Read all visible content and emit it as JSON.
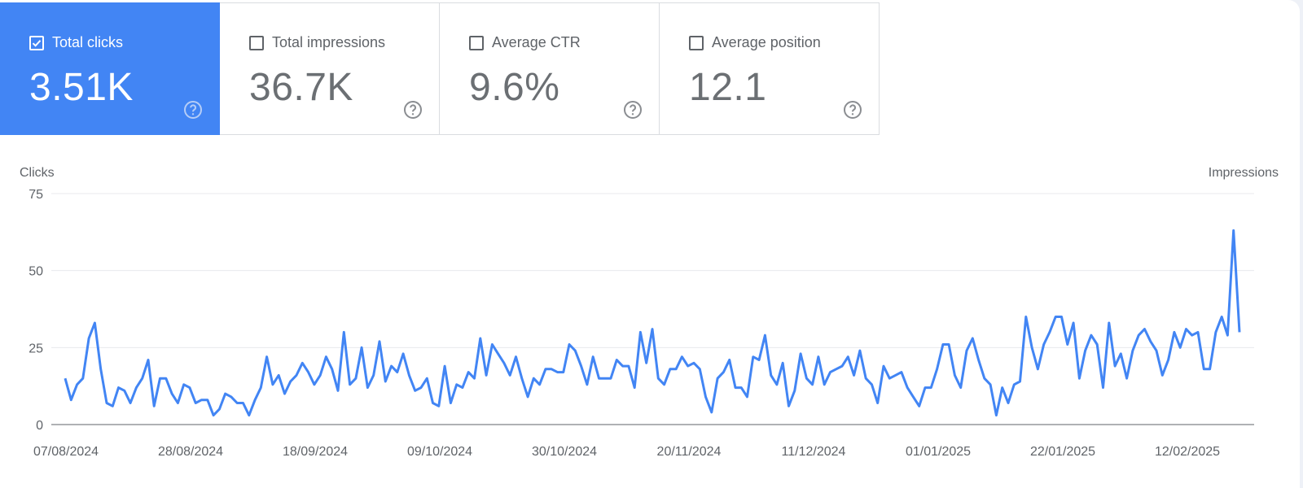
{
  "cards": [
    {
      "label": "Total clicks",
      "value": "3.51K",
      "checked": true
    },
    {
      "label": "Total impressions",
      "value": "36.7K",
      "checked": false
    },
    {
      "label": "Average CTR",
      "value": "9.6%",
      "checked": false
    },
    {
      "label": "Average position",
      "value": "12.1",
      "checked": false
    }
  ],
  "colors": {
    "accent": "#4285f4",
    "line": "#4285f4"
  },
  "icons": {
    "help": "help-circle-icon",
    "checkbox": "checkbox-icon"
  },
  "chart_data": {
    "type": "line",
    "ylabel_left": "Clicks",
    "ylabel_right": "Impressions",
    "ylim": [
      0,
      75
    ],
    "yticks": [
      0,
      25,
      50,
      75
    ],
    "x_tick_labels": [
      "07/08/2024",
      "28/08/2024",
      "18/09/2024",
      "09/10/2024",
      "30/10/2024",
      "20/11/2024",
      "11/12/2024",
      "01/01/2025",
      "22/01/2025",
      "12/02/2025"
    ],
    "grid": true,
    "series": [
      {
        "values": [
          15,
          8,
          13,
          15,
          28,
          33,
          18,
          7,
          6,
          12,
          11,
          7,
          12,
          15,
          21,
          6,
          15,
          15,
          10,
          7,
          13,
          12,
          7,
          8,
          8,
          3,
          5,
          10,
          9,
          7,
          7,
          3,
          8,
          12,
          22,
          13,
          16,
          10,
          14,
          16,
          20,
          17,
          13,
          16,
          22,
          18,
          11,
          30,
          13,
          15,
          25,
          12,
          16,
          27,
          14,
          19,
          17,
          23,
          16,
          11,
          12,
          15,
          7,
          6,
          19,
          7,
          13,
          12,
          17,
          15,
          28,
          16,
          26,
          23,
          20,
          16,
          22,
          15,
          9,
          15,
          13,
          18,
          18,
          17,
          17,
          26,
          24,
          19,
          13,
          22,
          15,
          15,
          15,
          21,
          19,
          19,
          12,
          30,
          20,
          31,
          15,
          13,
          18,
          18,
          22,
          19,
          20,
          18,
          9,
          4,
          15,
          17,
          21,
          12,
          12,
          9,
          22,
          21,
          29,
          16,
          13,
          20,
          6,
          11,
          23,
          15,
          13,
          22,
          13,
          17,
          18,
          19,
          22,
          16,
          24,
          15,
          13,
          7,
          19,
          15,
          16,
          17,
          12,
          9,
          6,
          12,
          12,
          18,
          26,
          26,
          16,
          12,
          24,
          28,
          21,
          15,
          13,
          3,
          12,
          7,
          13,
          14,
          35,
          25,
          18,
          26,
          30,
          35,
          35,
          26,
          33,
          15,
          24,
          29,
          26,
          12,
          33,
          19,
          23,
          15,
          24,
          29,
          31,
          27,
          24,
          16,
          21,
          30,
          25,
          31,
          29,
          30,
          18,
          18,
          30,
          35,
          29,
          63,
          30
        ]
      }
    ]
  }
}
